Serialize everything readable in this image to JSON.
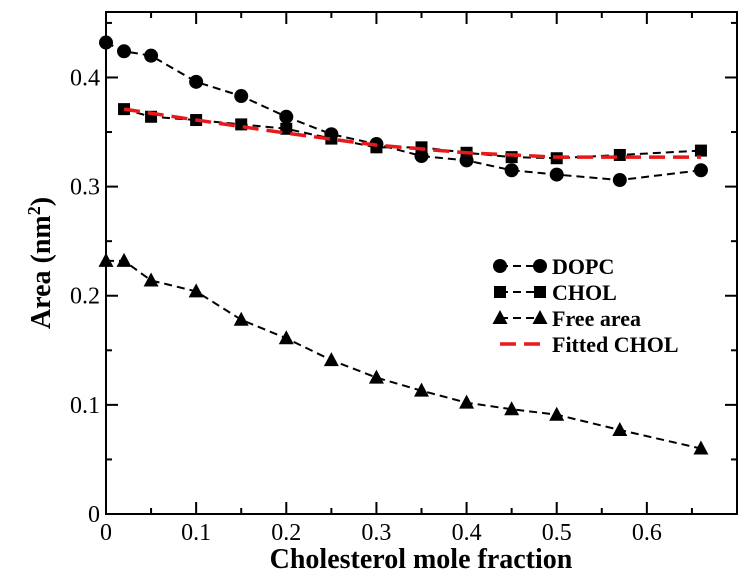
{
  "chart_data": {
    "type": "line",
    "xlabel": "Cholesterol mole fraction",
    "ylabel": "Area (nm",
    "ylabel_superscript": "2",
    "ylabel_suffix": ")",
    "xlim": [
      0,
      0.7
    ],
    "ylim": [
      0,
      0.46
    ],
    "x_ticks": [
      0,
      0.1,
      0.2,
      0.3,
      0.4,
      0.5,
      0.6
    ],
    "x_tick_labels": [
      "0",
      "0.1",
      "0.2",
      "0.3",
      "0.4",
      "0.5",
      "0.6"
    ],
    "y_ticks": [
      0,
      0.1,
      0.2,
      0.3,
      0.4
    ],
    "y_tick_labels": [
      "0",
      "0.1",
      "0.2",
      "0.3",
      "0.4"
    ],
    "grid": false,
    "legend_position": "right-middle",
    "series": [
      {
        "name": "DOPC",
        "marker": "circle",
        "line_style": "dashed",
        "color": "#000000",
        "x": [
          0,
          0.02,
          0.05,
          0.1,
          0.15,
          0.2,
          0.25,
          0.3,
          0.35,
          0.4,
          0.45,
          0.5,
          0.57,
          0.66
        ],
        "y": [
          0.432,
          0.424,
          0.42,
          0.396,
          0.383,
          0.364,
          0.348,
          0.339,
          0.328,
          0.324,
          0.315,
          0.311,
          0.306,
          0.315
        ]
      },
      {
        "name": "CHOL",
        "marker": "square",
        "line_style": "dashed",
        "color": "#000000",
        "x": [
          0.02,
          0.05,
          0.1,
          0.15,
          0.2,
          0.25,
          0.3,
          0.35,
          0.4,
          0.45,
          0.5,
          0.57,
          0.66
        ],
        "y": [
          0.371,
          0.364,
          0.361,
          0.357,
          0.353,
          0.344,
          0.336,
          0.336,
          0.331,
          0.327,
          0.326,
          0.329,
          0.333
        ]
      },
      {
        "name": "Free area",
        "marker": "triangle",
        "line_style": "dashed",
        "color": "#000000",
        "x": [
          0,
          0.02,
          0.05,
          0.1,
          0.15,
          0.2,
          0.25,
          0.3,
          0.35,
          0.4,
          0.45,
          0.5,
          0.57,
          0.66
        ],
        "y": [
          0.232,
          0.232,
          0.214,
          0.204,
          0.178,
          0.161,
          0.141,
          0.125,
          0.113,
          0.102,
          0.096,
          0.091,
          0.077,
          0.06
        ]
      },
      {
        "name": "Fitted CHOL",
        "marker": "none",
        "line_style": "dashed",
        "color": "#e8191b",
        "x": [
          0.02,
          0.1,
          0.2,
          0.3,
          0.4,
          0.5,
          0.57,
          0.66
        ],
        "y": [
          0.371,
          0.361,
          0.349,
          0.338,
          0.331,
          0.327,
          0.327,
          0.327
        ]
      }
    ]
  }
}
